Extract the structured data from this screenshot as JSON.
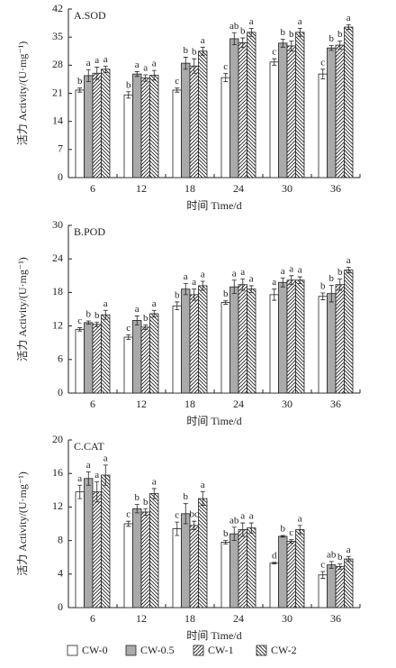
{
  "legend": [
    {
      "name": "CW-0",
      "color": "#ffffff",
      "pattern": "none"
    },
    {
      "name": "CW-0.5",
      "color": "#aaaaaa",
      "pattern": "none"
    },
    {
      "name": "CW-1",
      "color": "#ffffff",
      "pattern": "hatch-right"
    },
    {
      "name": "CW-2",
      "color": "#ffffff",
      "pattern": "hatch-left"
    }
  ],
  "chart_data": [
    {
      "type": "bar",
      "title": "A.SOD",
      "x_label": "时间 Time/d",
      "y_label": "活力 Activity/(U·mg⁻¹)",
      "categories": [
        "6",
        "12",
        "18",
        "24",
        "30",
        "36"
      ],
      "ylim": [
        0,
        42
      ],
      "yticks": [
        0,
        7,
        14,
        21,
        28,
        35,
        42
      ],
      "series": [
        {
          "values": [
            21.8,
            20.6,
            21.8,
            24.9,
            28.8,
            25.8
          ],
          "errors": [
            0.5,
            0.8,
            0.5,
            1.0,
            0.8,
            1.2
          ],
          "letters": [
            "b",
            "b",
            "c",
            "c",
            "c",
            "c"
          ]
        },
        {
          "values": [
            25.4,
            25.8,
            28.5,
            34.6,
            33.5,
            32.3
          ],
          "errors": [
            1.5,
            0.6,
            1.5,
            1.5,
            1.0,
            0.6
          ],
          "letters": [
            "a",
            "a",
            "b",
            "ab",
            "b",
            "b"
          ]
        },
        {
          "values": [
            26.0,
            24.8,
            27.8,
            33.6,
            32.8,
            33.0
          ],
          "errors": [
            1.5,
            0.8,
            1.8,
            1.2,
            1.2,
            1.0
          ],
          "letters": [
            "a",
            "a",
            "b",
            "b",
            "b",
            "b"
          ]
        },
        {
          "values": [
            27.0,
            25.5,
            31.5,
            36.2,
            36.2,
            37.5
          ],
          "errors": [
            0.8,
            1.2,
            1.0,
            1.0,
            1.0,
            0.6
          ],
          "letters": [
            "a",
            "a",
            "a",
            "a",
            "a",
            "a"
          ]
        }
      ]
    },
    {
      "type": "bar",
      "title": "B.POD",
      "x_label": "时间 Time/d",
      "y_label": "活力 Activity/(U·mg⁻¹)",
      "categories": [
        "6",
        "12",
        "18",
        "24",
        "30",
        "36"
      ],
      "ylim": [
        0,
        30
      ],
      "yticks": [
        0,
        6,
        12,
        18,
        24,
        30
      ],
      "series": [
        {
          "values": [
            11.4,
            10.0,
            15.6,
            16.2,
            17.6,
            17.3
          ],
          "errors": [
            0.3,
            0.4,
            0.7,
            0.3,
            1.0,
            0.6
          ],
          "letters": [
            "c",
            "c",
            "b",
            "b",
            "a",
            "b"
          ]
        },
        {
          "values": [
            12.6,
            13.0,
            18.6,
            19.0,
            19.8,
            17.8
          ],
          "errors": [
            0.3,
            0.8,
            1.0,
            1.2,
            0.8,
            1.5
          ],
          "letters": [
            "b",
            "a",
            "a",
            "a",
            "a",
            "b"
          ]
        },
        {
          "values": [
            12.3,
            11.8,
            17.6,
            19.4,
            20.2,
            19.4
          ],
          "errors": [
            0.4,
            0.4,
            1.0,
            1.0,
            0.8,
            1.0
          ],
          "letters": [
            "b",
            "b",
            "a",
            "a",
            "a",
            "b"
          ]
        },
        {
          "values": [
            14.0,
            14.2,
            19.2,
            18.6,
            20.2,
            22.0
          ],
          "errors": [
            0.8,
            0.6,
            0.8,
            0.6,
            0.6,
            0.5
          ],
          "letters": [
            "a",
            "a",
            "a",
            "a",
            "a",
            "a"
          ]
        }
      ]
    },
    {
      "type": "bar",
      "title": "C.CAT",
      "x_label": "时间 Time/d",
      "y_label": "活力 Activity/(U·mg⁻¹)",
      "categories": [
        "6",
        "12",
        "18",
        "24",
        "30",
        "36"
      ],
      "ylim": [
        0,
        20
      ],
      "yticks": [
        0,
        4,
        8,
        12,
        16,
        20
      ],
      "series": [
        {
          "values": [
            13.8,
            10.0,
            9.4,
            7.8,
            5.3,
            3.9
          ],
          "errors": [
            0.8,
            0.3,
            0.8,
            0.2,
            0.1,
            0.4
          ],
          "letters": [
            "a",
            "c",
            "c",
            "b",
            "d",
            "c"
          ]
        },
        {
          "values": [
            15.4,
            11.8,
            11.2,
            8.8,
            8.5,
            5.1
          ],
          "errors": [
            0.8,
            0.5,
            1.2,
            0.8,
            0.1,
            0.4
          ],
          "letters": [
            "a",
            "b",
            "b",
            "ab",
            "b",
            "ab"
          ]
        },
        {
          "values": [
            13.8,
            11.4,
            9.8,
            9.3,
            7.9,
            4.9
          ],
          "errors": [
            1.2,
            0.4,
            0.5,
            0.8,
            0.2,
            0.3
          ],
          "letters": [
            "a",
            "b",
            "bc",
            "a",
            "c",
            "b"
          ]
        },
        {
          "values": [
            15.8,
            13.6,
            13.0,
            9.5,
            9.3,
            5.8
          ],
          "errors": [
            1.2,
            0.6,
            0.8,
            0.6,
            0.5,
            0.3
          ],
          "letters": [
            "a",
            "a",
            "a",
            "a",
            "a",
            "a"
          ]
        }
      ]
    }
  ]
}
